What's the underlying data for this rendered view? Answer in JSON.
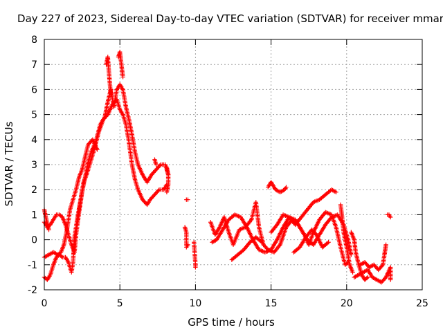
{
  "chart_data": {
    "type": "scatter",
    "title": "Day 227 of 2023, Sidereal Day-to-day VTEC variation (SDTVAR) for receiver mmar",
    "xlabel": "GPS time / hours",
    "ylabel": "SDTVAR / TECUs",
    "xlim": [
      0,
      25
    ],
    "ylim": [
      -2,
      8
    ],
    "x_ticks": [
      "0",
      "5",
      "10",
      "15",
      "20",
      "25"
    ],
    "y_ticks": [
      "-2",
      "-1",
      "0",
      "1",
      "2",
      "3",
      "4",
      "5",
      "6",
      "7",
      "8"
    ],
    "grid": true,
    "marker": "+",
    "series_color": "#ff0000",
    "series": [
      {
        "name": "SDTVAR",
        "tracks": [
          [
            [
              0.0,
              -1.5
            ],
            [
              0.2,
              -1.6
            ],
            [
              0.4,
              -1.4
            ],
            [
              0.6,
              -1.0
            ],
            [
              0.8,
              -0.7
            ],
            [
              1.0,
              -0.6
            ],
            [
              1.2,
              -0.7
            ],
            [
              1.4,
              -0.7
            ],
            [
              1.6,
              -0.9
            ],
            [
              1.8,
              -1.3
            ],
            [
              1.9,
              -0.9
            ],
            [
              2.0,
              0.1
            ],
            [
              2.2,
              0.9
            ],
            [
              2.4,
              1.6
            ],
            [
              2.6,
              2.3
            ],
            [
              2.8,
              2.6
            ],
            [
              3.0,
              3.0
            ],
            [
              3.3,
              3.6
            ],
            [
              3.6,
              4.3
            ],
            [
              3.9,
              4.8
            ],
            [
              4.2,
              5.0
            ],
            [
              4.5,
              5.4
            ],
            [
              4.8,
              5.6
            ],
            [
              5.0,
              5.2
            ],
            [
              5.2,
              5.0
            ],
            [
              5.4,
              4.6
            ],
            [
              5.6,
              3.9
            ],
            [
              5.8,
              3.0
            ],
            [
              6.0,
              2.4
            ],
            [
              6.2,
              2.0
            ],
            [
              6.5,
              1.6
            ],
            [
              6.8,
              1.4
            ],
            [
              7.0,
              1.6
            ],
            [
              7.3,
              1.8
            ],
            [
              7.6,
              2.0
            ],
            [
              7.9,
              2.0
            ],
            [
              8.1,
              2.2
            ]
          ],
          [
            [
              0.0,
              0.7
            ],
            [
              0.2,
              0.5
            ],
            [
              0.4,
              0.6
            ],
            [
              0.6,
              0.8
            ],
            [
              0.8,
              1.0
            ],
            [
              1.0,
              1.0
            ],
            [
              1.2,
              0.9
            ],
            [
              1.4,
              0.6
            ],
            [
              1.6,
              0.2
            ],
            [
              1.8,
              -0.2
            ],
            [
              2.0,
              -0.5
            ],
            [
              2.1,
              0.2
            ],
            [
              2.3,
              1.1
            ],
            [
              2.5,
              1.9
            ],
            [
              2.7,
              2.5
            ],
            [
              2.9,
              3.1
            ],
            [
              3.1,
              3.5
            ],
            [
              3.4,
              3.9
            ],
            [
              3.7,
              4.6
            ],
            [
              4.0,
              4.9
            ],
            [
              4.2,
              5.5
            ],
            [
              4.4,
              6.0
            ],
            [
              4.6,
              5.3
            ],
            [
              4.8,
              6.0
            ],
            [
              5.0,
              6.2
            ],
            [
              5.2,
              6.0
            ],
            [
              5.4,
              5.3
            ],
            [
              5.6,
              4.8
            ],
            [
              5.8,
              4.2
            ],
            [
              6.0,
              3.5
            ],
            [
              6.2,
              3.0
            ],
            [
              6.5,
              2.6
            ],
            [
              6.8,
              2.3
            ],
            [
              7.1,
              2.6
            ],
            [
              7.4,
              2.8
            ],
            [
              7.7,
              3.0
            ],
            [
              8.0,
              3.0
            ],
            [
              8.2,
              2.6
            ]
          ],
          [
            [
              0.0,
              -0.7
            ],
            [
              0.3,
              -0.6
            ],
            [
              0.6,
              -0.5
            ],
            [
              0.9,
              -0.6
            ],
            [
              1.1,
              -0.5
            ],
            [
              1.3,
              -0.2
            ],
            [
              1.5,
              0.4
            ],
            [
              1.7,
              1.2
            ],
            [
              1.9,
              1.6
            ],
            [
              2.1,
              2.0
            ],
            [
              2.3,
              2.5
            ],
            [
              2.5,
              2.8
            ],
            [
              2.7,
              3.3
            ],
            [
              2.9,
              3.8
            ],
            [
              3.2,
              4.0
            ],
            [
              3.5,
              3.6
            ]
          ],
          [
            [
              0.0,
              1.2
            ],
            [
              0.1,
              0.9
            ],
            [
              0.3,
              0.4
            ]
          ],
          [
            [
              4.1,
              7.0
            ],
            [
              4.2,
              7.3
            ],
            [
              4.3,
              6.5
            ],
            [
              4.4,
              5.8
            ]
          ],
          [
            [
              4.9,
              7.3
            ],
            [
              5.0,
              7.5
            ],
            [
              5.1,
              7.0
            ],
            [
              5.2,
              6.5
            ]
          ],
          [
            [
              7.3,
              3.2
            ],
            [
              7.4,
              3.0
            ]
          ],
          [
            [
              8.1,
              2.9
            ],
            [
              8.2,
              2.6
            ],
            [
              8.2,
              2.2
            ],
            [
              8.1,
              1.9
            ]
          ],
          [
            [
              9.4,
              1.6
            ],
            [
              9.5,
              1.6
            ]
          ],
          [
            [
              9.3,
              0.5
            ],
            [
              9.4,
              0.3
            ],
            [
              9.4,
              -0.3
            ],
            [
              9.5,
              -0.2
            ]
          ],
          [
            [
              9.9,
              -0.1
            ],
            [
              10.0,
              -1.0
            ],
            [
              10.0,
              -1.1
            ]
          ],
          [
            [
              11.0,
              0.7
            ],
            [
              11.3,
              0.2
            ],
            [
              11.6,
              0.5
            ],
            [
              11.9,
              0.9
            ],
            [
              12.2,
              0.3
            ],
            [
              12.5,
              -0.2
            ],
            [
              12.9,
              0.4
            ],
            [
              13.3,
              0.5
            ],
            [
              13.7,
              0.8
            ],
            [
              14.0,
              1.5
            ],
            [
              14.2,
              0.5
            ],
            [
              14.5,
              -0.2
            ],
            [
              14.8,
              -0.4
            ],
            [
              15.2,
              -0.5
            ],
            [
              15.6,
              -0.2
            ],
            [
              16.0,
              0.5
            ],
            [
              16.4,
              0.8
            ],
            [
              16.8,
              0.6
            ],
            [
              17.2,
              0.2
            ],
            [
              17.5,
              -0.2
            ],
            [
              17.8,
              0.3
            ],
            [
              18.2,
              0.8
            ],
            [
              18.6,
              1.1
            ],
            [
              19.0,
              1.0
            ],
            [
              19.3,
              0.5
            ],
            [
              19.6,
              -0.3
            ],
            [
              19.9,
              -1.0
            ],
            [
              20.1,
              -0.9
            ]
          ],
          [
            [
              11.1,
              -0.1
            ],
            [
              11.4,
              0.0
            ],
            [
              11.8,
              0.4
            ],
            [
              12.2,
              0.8
            ],
            [
              12.6,
              1.0
            ],
            [
              13.0,
              0.9
            ],
            [
              13.4,
              0.5
            ],
            [
              13.8,
              0.0
            ],
            [
              14.2,
              -0.4
            ],
            [
              14.6,
              -0.5
            ],
            [
              15.0,
              -0.4
            ],
            [
              15.4,
              0.0
            ],
            [
              15.8,
              0.5
            ],
            [
              16.2,
              0.9
            ],
            [
              16.6,
              0.8
            ],
            [
              17.0,
              0.4
            ],
            [
              17.4,
              0.0
            ],
            [
              17.8,
              -0.2
            ],
            [
              18.2,
              0.2
            ],
            [
              18.6,
              0.6
            ],
            [
              19.0,
              0.9
            ],
            [
              19.4,
              1.0
            ],
            [
              19.8,
              0.6
            ],
            [
              20.1,
              0.0
            ],
            [
              20.3,
              -0.6
            ]
          ],
          [
            [
              12.4,
              -0.8
            ],
            [
              12.8,
              -0.6
            ],
            [
              13.2,
              -0.4
            ],
            [
              13.6,
              -0.1
            ],
            [
              14.0,
              0.1
            ],
            [
              14.4,
              -0.1
            ]
          ],
          [
            [
              14.8,
              2.1
            ],
            [
              15.0,
              2.3
            ],
            [
              15.3,
              2.0
            ],
            [
              15.6,
              1.9
            ],
            [
              15.9,
              2.0
            ],
            [
              16.0,
              2.1
            ]
          ],
          [
            [
              15.0,
              0.3
            ],
            [
              15.4,
              0.6
            ],
            [
              15.8,
              1.0
            ],
            [
              16.2,
              0.9
            ],
            [
              16.6,
              0.6
            ],
            [
              17.0,
              0.9
            ],
            [
              17.4,
              1.2
            ],
            [
              17.8,
              1.5
            ],
            [
              18.2,
              1.6
            ],
            [
              18.6,
              1.8
            ],
            [
              19.0,
              2.0
            ],
            [
              19.3,
              1.9
            ]
          ],
          [
            [
              16.5,
              -0.5
            ],
            [
              16.9,
              -0.3
            ],
            [
              17.3,
              0.1
            ],
            [
              17.7,
              0.4
            ],
            [
              18.0,
              0.2
            ],
            [
              18.4,
              -0.3
            ],
            [
              18.8,
              -0.1
            ]
          ],
          [
            [
              19.6,
              1.4
            ],
            [
              19.7,
              0.9
            ],
            [
              19.8,
              0.3
            ],
            [
              20.0,
              -0.3
            ],
            [
              20.2,
              -1.0
            ],
            [
              20.4,
              -1.3
            ]
          ],
          [
            [
              20.3,
              0.3
            ],
            [
              20.5,
              0.0
            ],
            [
              20.6,
              -0.5
            ],
            [
              20.8,
              -1.0
            ],
            [
              21.0,
              -1.4
            ],
            [
              21.2,
              -1.6
            ],
            [
              21.4,
              -1.5
            ]
          ],
          [
            [
              20.5,
              -1.5
            ],
            [
              20.8,
              -1.4
            ],
            [
              21.1,
              -1.3
            ],
            [
              21.4,
              -1.2
            ],
            [
              21.7,
              -1.5
            ],
            [
              22.0,
              -1.6
            ],
            [
              22.3,
              -1.7
            ],
            [
              22.6,
              -1.5
            ],
            [
              22.9,
              -1.1
            ],
            [
              22.9,
              -1.6
            ]
          ],
          [
            [
              20.9,
              -1.0
            ],
            [
              21.2,
              -0.9
            ],
            [
              21.5,
              -1.1
            ],
            [
              21.8,
              -1.0
            ],
            [
              22.1,
              -1.2
            ],
            [
              22.4,
              -1.0
            ],
            [
              22.6,
              -0.2
            ],
            [
              22.5,
              -0.6
            ]
          ],
          [
            [
              22.7,
              1.0
            ],
            [
              22.8,
              1.0
            ],
            [
              22.9,
              0.9
            ]
          ]
        ]
      }
    ]
  }
}
